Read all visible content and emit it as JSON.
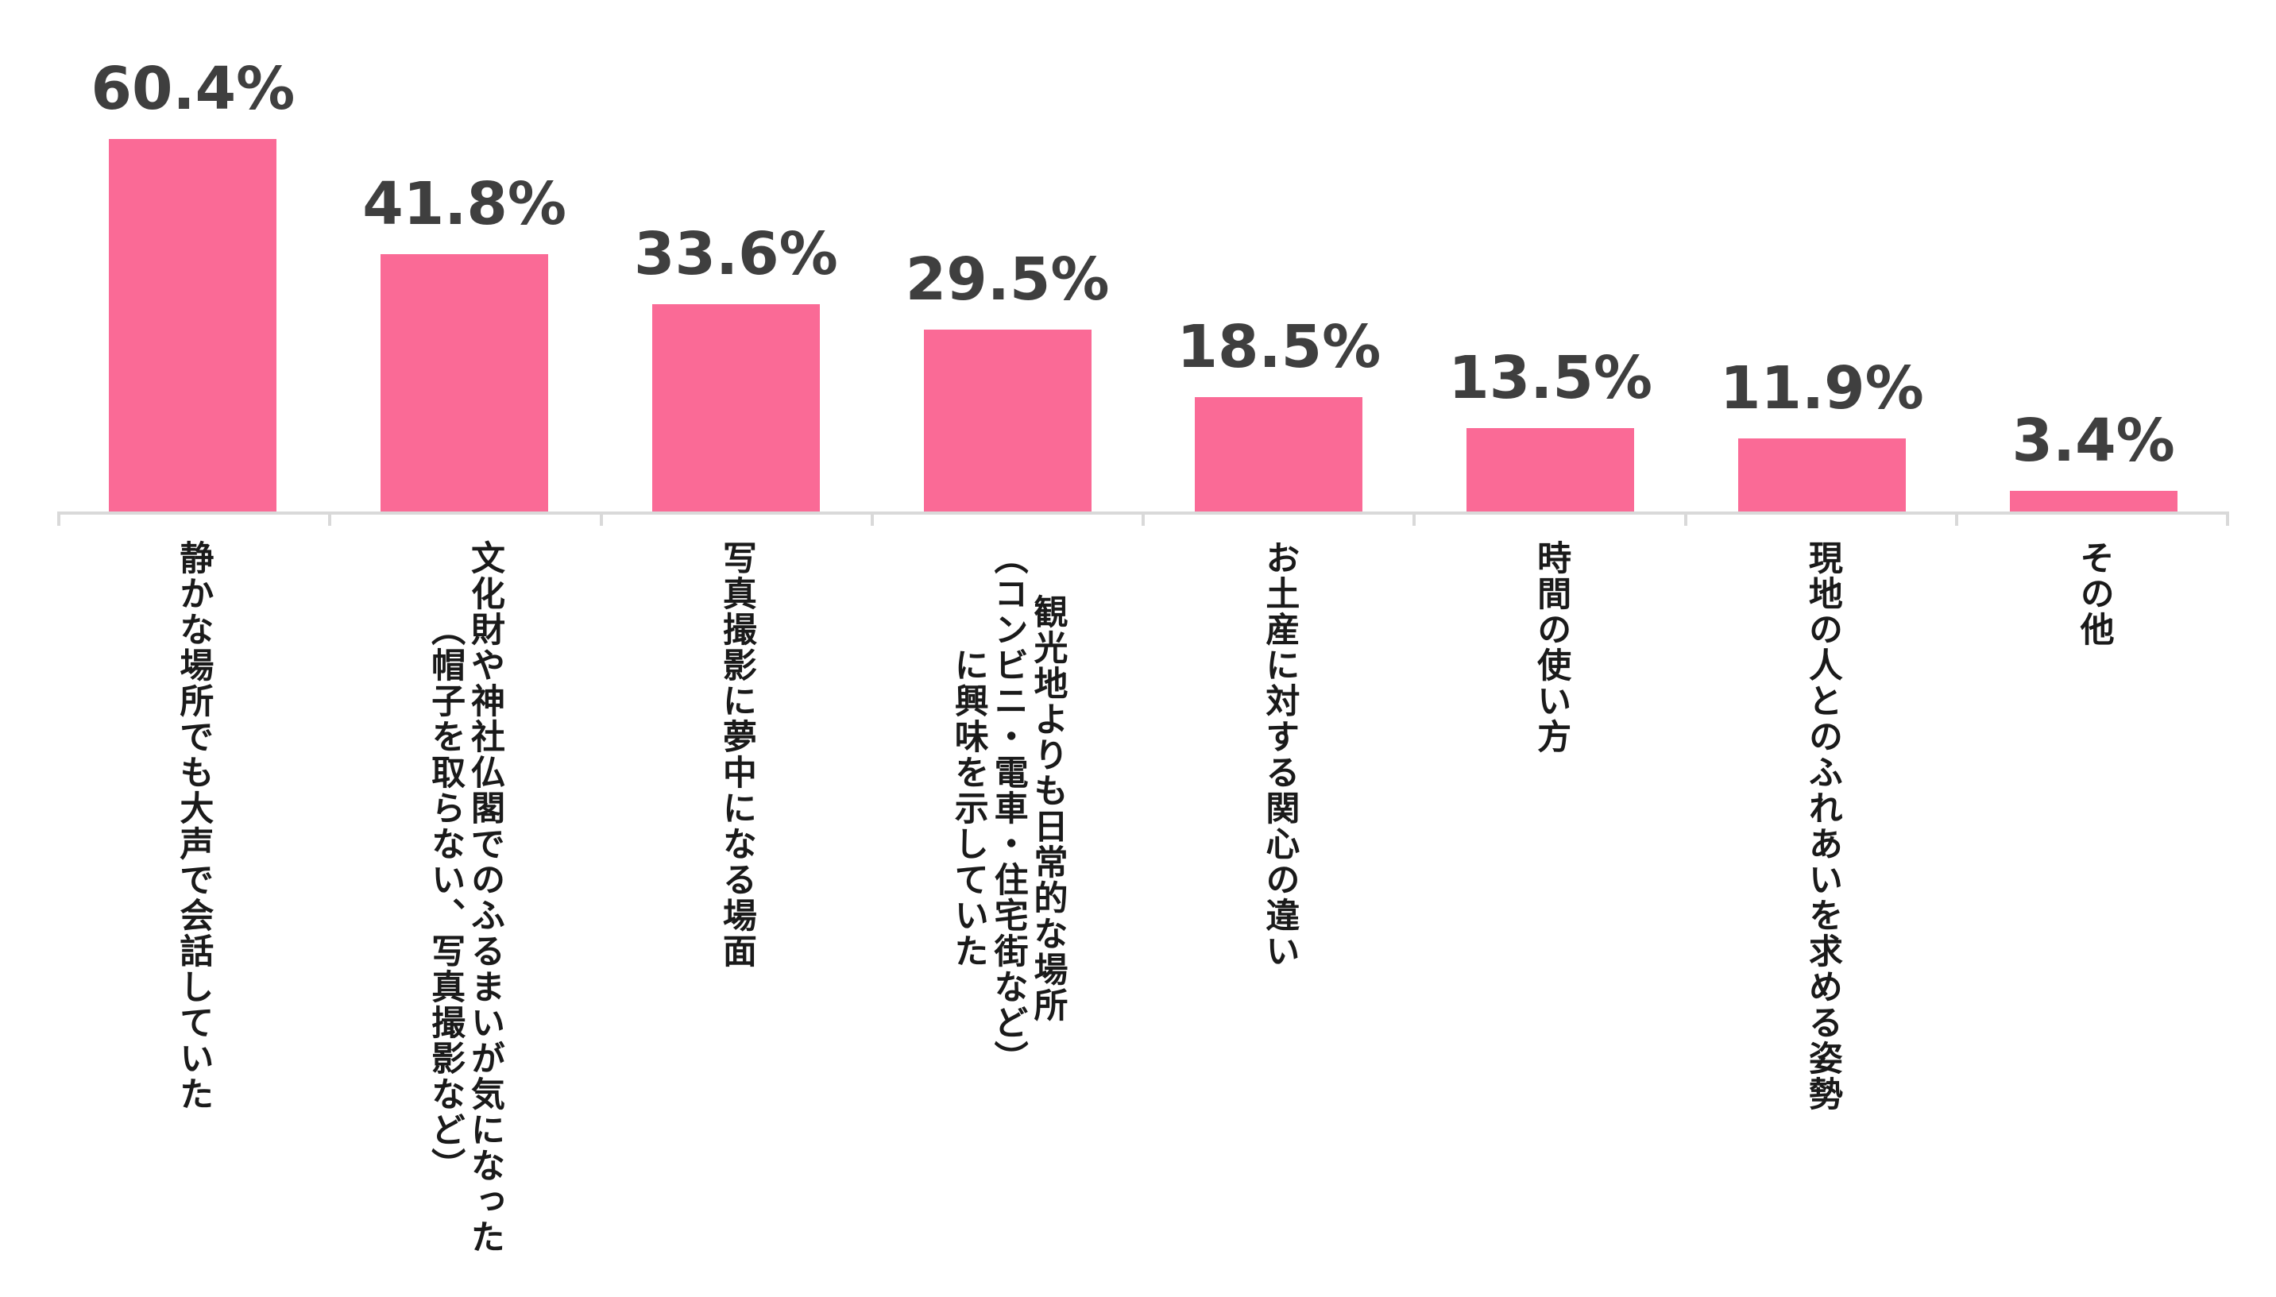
{
  "chart_data": {
    "type": "bar",
    "categories": [
      "静かな場所でも大声で会話していた",
      "文化財や神社仏閣でのふるまいが気になった\n（帽子を取らない、写真撮影など）",
      "写真撮影に夢中になる場面",
      "観光地よりも日常的な場所\n（コンビニ・電車・住宅街など）\nに興味を示していた",
      "お土産に対する関心の違い",
      "時間の使い方",
      "現地の人とのふれあいを求める姿勢",
      "その他"
    ],
    "values": [
      60.4,
      41.8,
      33.6,
      29.5,
      18.5,
      13.5,
      11.9,
      3.4
    ],
    "value_labels": [
      "60.4%",
      "41.8%",
      "33.6%",
      "29.5%",
      "18.5%",
      "13.5%",
      "11.9%",
      "3.4%"
    ],
    "title": "",
    "xlabel": "",
    "ylabel": "",
    "ylim": [
      0,
      83
    ],
    "grid": false,
    "legend_position": "none",
    "bar_color": "#FA6A96",
    "value_label_color": "#3F3F3F",
    "axis_color": "#D9D9D9",
    "category_label_color": "#1A1A1A"
  }
}
